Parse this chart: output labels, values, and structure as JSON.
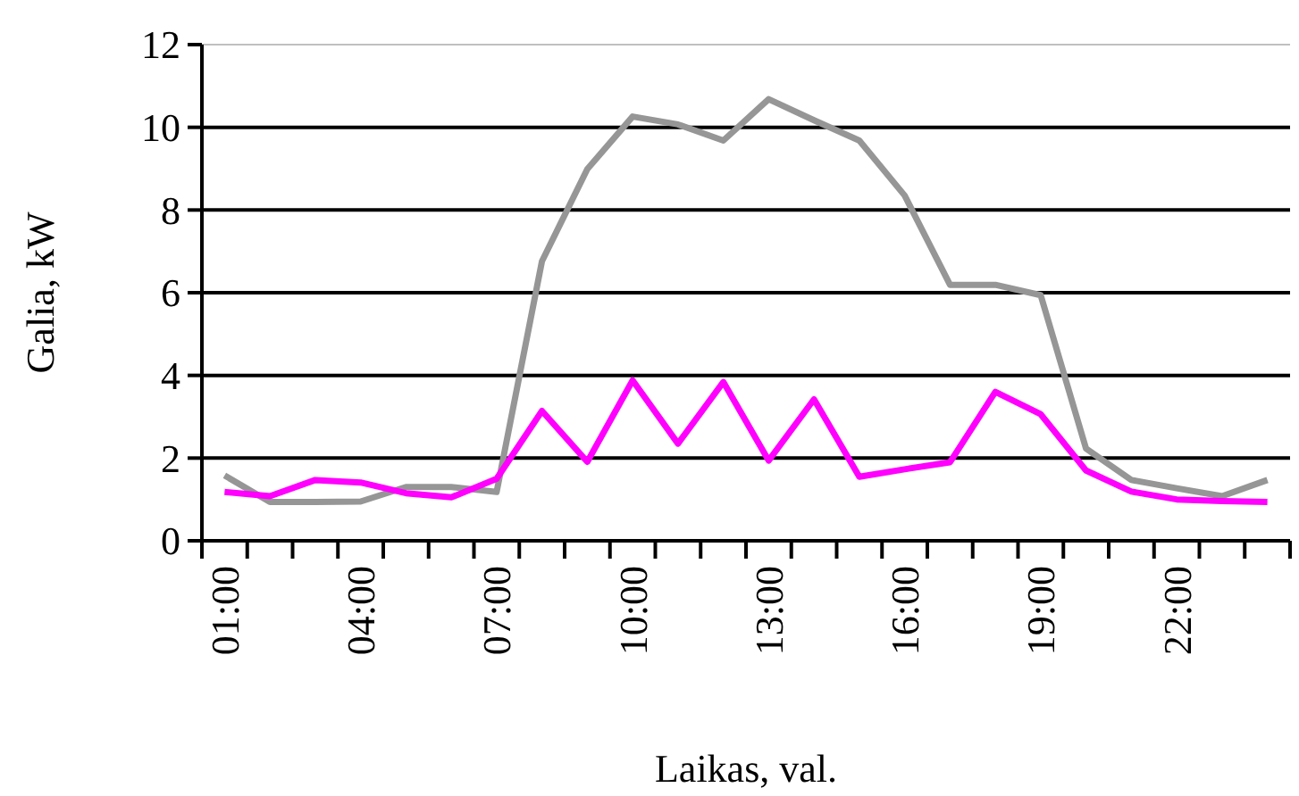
{
  "chart_data": {
    "type": "line",
    "xlabel": "Laikas, val.",
    "ylabel": "Galia, kW",
    "categories": [
      "01:00",
      null,
      null,
      "04:00",
      null,
      null,
      "07:00",
      null,
      null,
      "10:00",
      null,
      null,
      "13:00",
      null,
      null,
      "16:00",
      null,
      null,
      "19:00",
      null,
      null,
      "22:00",
      null,
      null
    ],
    "series": [
      {
        "color": "#969696",
        "values": [
          1.58,
          0.94,
          0.94,
          0.95,
          1.3,
          1.3,
          1.18,
          6.76,
          8.99,
          10.26,
          10.07,
          9.68,
          10.68,
          10.17,
          9.68,
          8.35,
          6.19,
          6.19,
          5.94,
          2.23,
          1.47,
          1.27,
          1.08,
          1.47
        ]
      },
      {
        "color": "#ff00ff",
        "values": [
          1.18,
          1.08,
          1.47,
          1.41,
          1.15,
          1.05,
          1.5,
          3.14,
          1.91,
          3.88,
          2.35,
          3.84,
          1.94,
          3.42,
          1.55,
          1.73,
          1.9,
          3.6,
          3.06,
          1.7,
          1.19,
          1.0,
          0.96,
          0.94
        ]
      }
    ],
    "ylim": [
      0,
      12
    ],
    "yticks": [
      0,
      2,
      4,
      6,
      8,
      10,
      12
    ],
    "grid": "y",
    "marker": "none",
    "line_style": "solid"
  }
}
